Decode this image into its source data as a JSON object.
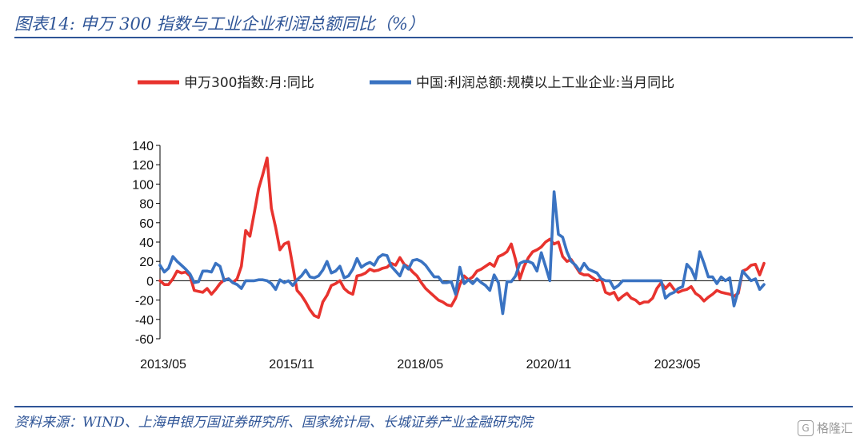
{
  "header": {
    "title": "图表14:  申万 300 指数与工业企业利润总额同比（%）"
  },
  "footer": {
    "source": "资料来源：WIND、上海申银万国证券研究所、国家统计局、长城证券产业金融研究院",
    "watermark_text": "格隆汇",
    "watermark_icon": "G"
  },
  "colors": {
    "series1": "#e8332e",
    "series2": "#3a73c2",
    "rule": "#2f5597"
  },
  "chart_data": {
    "type": "line",
    "title": "",
    "x_tick_labels": [
      "2013/05",
      "2015/11",
      "2018/05",
      "2020/11",
      "2023/05"
    ],
    "y_ticks": [
      140,
      120,
      100,
      80,
      60,
      40,
      20,
      0,
      -20,
      -40,
      -60
    ],
    "ylim": [
      -60,
      140
    ],
    "x_start": "2013-05",
    "x_end": "2025-02",
    "legend_position": "top",
    "series": [
      {
        "name": "申万300指数:月:同比",
        "color": "#e8332e",
        "points": [
          [
            "2013-05",
            0
          ],
          [
            "2013-06",
            -4
          ],
          [
            "2013-07",
            -4
          ],
          [
            "2013-08",
            2
          ],
          [
            "2013-09",
            10
          ],
          [
            "2013-10",
            8
          ],
          [
            "2013-11",
            9
          ],
          [
            "2013-12",
            5
          ],
          [
            "2014-01",
            -10
          ],
          [
            "2014-02",
            -11
          ],
          [
            "2014-03",
            -12
          ],
          [
            "2014-04",
            -8
          ],
          [
            "2014-05",
            -14
          ],
          [
            "2014-06",
            -9
          ],
          [
            "2014-07",
            -3
          ],
          [
            "2014-08",
            1
          ],
          [
            "2014-09",
            2
          ],
          [
            "2014-10",
            -2
          ],
          [
            "2014-11",
            2
          ],
          [
            "2014-12",
            15
          ],
          [
            "2015-01",
            52
          ],
          [
            "2015-02",
            46
          ],
          [
            "2015-03",
            70
          ],
          [
            "2015-04",
            95
          ],
          [
            "2015-05",
            110
          ],
          [
            "2015-06",
            127
          ],
          [
            "2015-07",
            75
          ],
          [
            "2015-08",
            55
          ],
          [
            "2015-09",
            32
          ],
          [
            "2015-10",
            38
          ],
          [
            "2015-11",
            40
          ],
          [
            "2015-12",
            15
          ],
          [
            "2016-01",
            -10
          ],
          [
            "2016-02",
            -15
          ],
          [
            "2016-03",
            -22
          ],
          [
            "2016-04",
            -30
          ],
          [
            "2016-05",
            -36
          ],
          [
            "2016-06",
            -38
          ],
          [
            "2016-07",
            -22
          ],
          [
            "2016-08",
            -15
          ],
          [
            "2016-09",
            -5
          ],
          [
            "2016-10",
            -3
          ],
          [
            "2016-11",
            0
          ],
          [
            "2016-12",
            -8
          ],
          [
            "2017-01",
            -12
          ],
          [
            "2017-02",
            -14
          ],
          [
            "2017-03",
            5
          ],
          [
            "2017-04",
            6
          ],
          [
            "2017-05",
            8
          ],
          [
            "2017-06",
            12
          ],
          [
            "2017-07",
            10
          ],
          [
            "2017-08",
            11
          ],
          [
            "2017-09",
            13
          ],
          [
            "2017-10",
            14
          ],
          [
            "2017-11",
            18
          ],
          [
            "2017-12",
            16
          ],
          [
            "2018-01",
            24
          ],
          [
            "2018-02",
            17
          ],
          [
            "2018-03",
            14
          ],
          [
            "2018-04",
            9
          ],
          [
            "2018-05",
            5
          ],
          [
            "2018-06",
            -2
          ],
          [
            "2018-07",
            -8
          ],
          [
            "2018-08",
            -12
          ],
          [
            "2018-09",
            -16
          ],
          [
            "2018-10",
            -20
          ],
          [
            "2018-11",
            -22
          ],
          [
            "2018-12",
            -25
          ],
          [
            "2019-01",
            -26
          ],
          [
            "2019-02",
            -18
          ],
          [
            "2019-03",
            -4
          ],
          [
            "2019-04",
            5
          ],
          [
            "2019-05",
            1
          ],
          [
            "2019-06",
            4
          ],
          [
            "2019-07",
            10
          ],
          [
            "2019-08",
            12
          ],
          [
            "2019-09",
            15
          ],
          [
            "2019-10",
            18
          ],
          [
            "2019-11",
            15
          ],
          [
            "2019-12",
            25
          ],
          [
            "2020-01",
            27
          ],
          [
            "2020-02",
            30
          ],
          [
            "2020-03",
            38
          ],
          [
            "2020-04",
            22
          ],
          [
            "2020-05",
            2
          ],
          [
            "2020-06",
            15
          ],
          [
            "2020-07",
            24
          ],
          [
            "2020-08",
            30
          ],
          [
            "2020-09",
            32
          ],
          [
            "2020-10",
            35
          ],
          [
            "2020-11",
            40
          ],
          [
            "2020-12",
            43
          ],
          [
            "2021-01",
            38
          ],
          [
            "2021-02",
            40
          ],
          [
            "2021-03",
            25
          ],
          [
            "2021-04",
            20
          ],
          [
            "2021-05",
            22
          ],
          [
            "2021-06",
            15
          ],
          [
            "2021-07",
            8
          ],
          [
            "2021-08",
            6
          ],
          [
            "2021-09",
            6
          ],
          [
            "2021-10",
            3
          ],
          [
            "2021-11",
            0
          ],
          [
            "2021-12",
            2
          ],
          [
            "2022-01",
            -12
          ],
          [
            "2022-02",
            -14
          ],
          [
            "2022-03",
            -12
          ],
          [
            "2022-04",
            -20
          ],
          [
            "2022-05",
            -16
          ],
          [
            "2022-06",
            -13
          ],
          [
            "2022-07",
            -18
          ],
          [
            "2022-08",
            -20
          ],
          [
            "2022-09",
            -24
          ],
          [
            "2022-10",
            -22
          ],
          [
            "2022-11",
            -22
          ],
          [
            "2022-12",
            -18
          ],
          [
            "2023-01",
            -8
          ],
          [
            "2023-02",
            -2
          ],
          [
            "2023-03",
            -8
          ],
          [
            "2023-04",
            -3
          ],
          [
            "2023-05",
            -9
          ],
          [
            "2023-06",
            -12
          ],
          [
            "2023-07",
            -10
          ],
          [
            "2023-08",
            -9
          ],
          [
            "2023-09",
            -6
          ],
          [
            "2023-10",
            -13
          ],
          [
            "2023-11",
            -16
          ],
          [
            "2023-12",
            -21
          ],
          [
            "2024-01",
            -17
          ],
          [
            "2024-02",
            -14
          ],
          [
            "2024-03",
            -10
          ],
          [
            "2024-04",
            -12
          ],
          [
            "2024-05",
            -13
          ],
          [
            "2024-06",
            -14
          ],
          [
            "2024-07",
            -16
          ],
          [
            "2024-08",
            -13
          ],
          [
            "2024-09",
            10
          ],
          [
            "2024-10",
            12
          ],
          [
            "2024-11",
            16
          ],
          [
            "2024-12",
            17
          ],
          [
            "2025-01",
            6
          ],
          [
            "2025-02",
            18
          ]
        ]
      },
      {
        "name": "中国:利润总额:规模以上工业企业:当月同比",
        "color": "#3a73c2",
        "points": [
          [
            "2013-05",
            16
          ],
          [
            "2013-06",
            9
          ],
          [
            "2013-07",
            13
          ],
          [
            "2013-08",
            25
          ],
          [
            "2013-09",
            20
          ],
          [
            "2013-10",
            16
          ],
          [
            "2013-11",
            12
          ],
          [
            "2013-12",
            7
          ],
          [
            "2014-01",
            -2
          ],
          [
            "2014-02",
            -1
          ],
          [
            "2014-03",
            10
          ],
          [
            "2014-04",
            10
          ],
          [
            "2014-05",
            9
          ],
          [
            "2014-06",
            18
          ],
          [
            "2014-07",
            15
          ],
          [
            "2014-08",
            0
          ],
          [
            "2014-09",
            2
          ],
          [
            "2014-10",
            -2
          ],
          [
            "2014-11",
            -4
          ],
          [
            "2014-12",
            -8
          ],
          [
            "2015-01",
            0
          ],
          [
            "2015-02",
            0
          ],
          [
            "2015-03",
            0
          ],
          [
            "2015-04",
            1
          ],
          [
            "2015-05",
            1
          ],
          [
            "2015-06",
            0
          ],
          [
            "2015-07",
            -3
          ],
          [
            "2015-08",
            -9
          ],
          [
            "2015-09",
            1
          ],
          [
            "2015-10",
            -2
          ],
          [
            "2015-11",
            0
          ],
          [
            "2015-12",
            -5
          ],
          [
            "2016-01",
            1
          ],
          [
            "2016-02",
            5
          ],
          [
            "2016-03",
            11
          ],
          [
            "2016-04",
            4
          ],
          [
            "2016-05",
            3
          ],
          [
            "2016-06",
            5
          ],
          [
            "2016-07",
            11
          ],
          [
            "2016-08",
            20
          ],
          [
            "2016-09",
            8
          ],
          [
            "2016-10",
            10
          ],
          [
            "2016-11",
            15
          ],
          [
            "2016-12",
            3
          ],
          [
            "2017-01",
            5
          ],
          [
            "2017-02",
            12
          ],
          [
            "2017-03",
            23
          ],
          [
            "2017-04",
            14
          ],
          [
            "2017-05",
            17
          ],
          [
            "2017-06",
            19
          ],
          [
            "2017-07",
            16
          ],
          [
            "2017-08",
            24
          ],
          [
            "2017-09",
            27
          ],
          [
            "2017-10",
            26
          ],
          [
            "2017-11",
            15
          ],
          [
            "2017-12",
            10
          ],
          [
            "2018-01",
            5
          ],
          [
            "2018-02",
            16
          ],
          [
            "2018-03",
            12
          ],
          [
            "2018-04",
            21
          ],
          [
            "2018-05",
            22
          ],
          [
            "2018-06",
            20
          ],
          [
            "2018-07",
            16
          ],
          [
            "2018-08",
            10
          ],
          [
            "2018-09",
            4
          ],
          [
            "2018-10",
            4
          ],
          [
            "2018-11",
            -2
          ],
          [
            "2018-12",
            -2
          ],
          [
            "2019-01",
            -1
          ],
          [
            "2019-02",
            -14
          ],
          [
            "2019-03",
            14
          ],
          [
            "2019-04",
            -3
          ],
          [
            "2019-05",
            1
          ],
          [
            "2019-06",
            -3
          ],
          [
            "2019-07",
            2
          ],
          [
            "2019-08",
            -2
          ],
          [
            "2019-09",
            -5
          ],
          [
            "2019-10",
            -10
          ],
          [
            "2019-11",
            6
          ],
          [
            "2019-12",
            -2
          ],
          [
            "2020-01",
            -34
          ],
          [
            "2020-02",
            -1
          ],
          [
            "2020-03",
            -1
          ],
          [
            "2020-04",
            5
          ],
          [
            "2020-05",
            18
          ],
          [
            "2020-06",
            20
          ],
          [
            "2020-07",
            20
          ],
          [
            "2020-08",
            18
          ],
          [
            "2020-09",
            10
          ],
          [
            "2020-10",
            29
          ],
          [
            "2020-11",
            15
          ],
          [
            "2020-12",
            0
          ],
          [
            "2021-01",
            92
          ],
          [
            "2021-02",
            48
          ],
          [
            "2021-03",
            45
          ],
          [
            "2021-04",
            30
          ],
          [
            "2021-05",
            20
          ],
          [
            "2021-06",
            16
          ],
          [
            "2021-07",
            10
          ],
          [
            "2021-08",
            18
          ],
          [
            "2021-09",
            12
          ],
          [
            "2021-10",
            10
          ],
          [
            "2021-11",
            8
          ],
          [
            "2021-12",
            2
          ],
          [
            "2022-01",
            0
          ],
          [
            "2022-02",
            0
          ],
          [
            "2022-03",
            -8
          ],
          [
            "2022-04",
            -5
          ],
          [
            "2022-05",
            0
          ],
          [
            "2022-06",
            0
          ],
          [
            "2022-07",
            0
          ],
          [
            "2022-08",
            0
          ],
          [
            "2022-09",
            0
          ],
          [
            "2022-10",
            0
          ],
          [
            "2022-11",
            0
          ],
          [
            "2022-12",
            0
          ],
          [
            "2023-01",
            0
          ],
          [
            "2023-02",
            0
          ],
          [
            "2023-03",
            -18
          ],
          [
            "2023-04",
            -14
          ],
          [
            "2023-05",
            -12
          ],
          [
            "2023-06",
            -8
          ],
          [
            "2023-07",
            -6
          ],
          [
            "2023-08",
            17
          ],
          [
            "2023-09",
            12
          ],
          [
            "2023-10",
            2
          ],
          [
            "2023-11",
            30
          ],
          [
            "2023-12",
            18
          ],
          [
            "2024-01",
            4
          ],
          [
            "2024-02",
            4
          ],
          [
            "2024-03",
            -3
          ],
          [
            "2024-04",
            4
          ],
          [
            "2024-05",
            0
          ],
          [
            "2024-06",
            3
          ],
          [
            "2024-07",
            -26
          ],
          [
            "2024-08",
            -10
          ],
          [
            "2024-09",
            10
          ],
          [
            "2024-10",
            5
          ],
          [
            "2024-11",
            0
          ],
          [
            "2024-12",
            2
          ],
          [
            "2025-01",
            -9
          ],
          [
            "2025-02",
            -4
          ]
        ]
      }
    ]
  }
}
